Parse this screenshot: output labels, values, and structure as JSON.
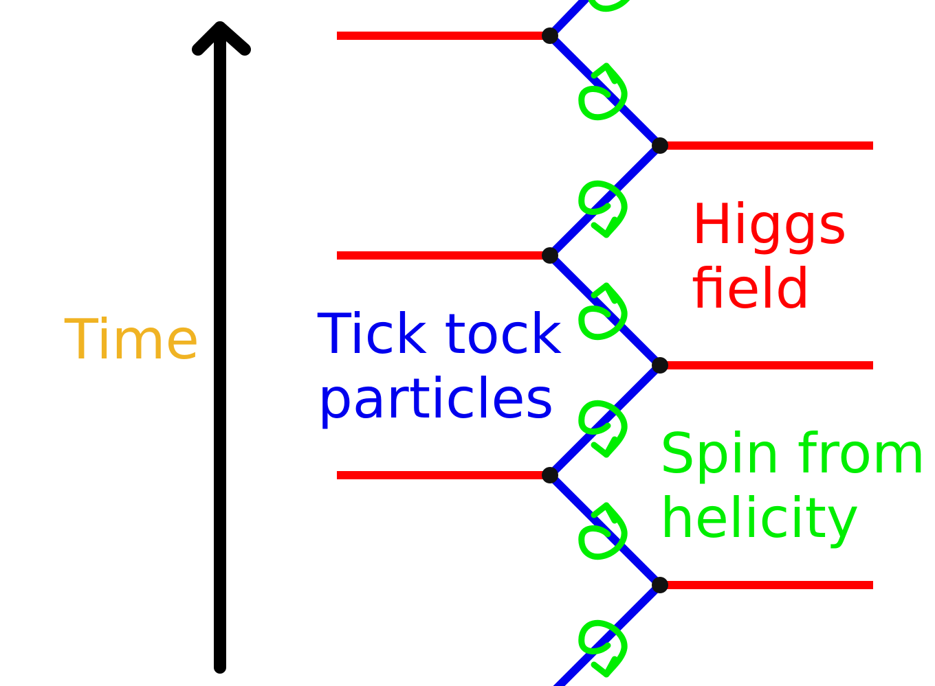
{
  "labels": {
    "time": "Time",
    "particles_line1": "Tick tock",
    "particles_line2": "particles",
    "higgs_line1": "Higgs",
    "higgs_line2": "field",
    "spin_line1": "Spin from",
    "spin_line2": "helicity"
  },
  "colors": {
    "time": "#f0b323",
    "particles": "#0000ee",
    "higgs": "#ff0000",
    "spin": "#00ee00",
    "arrow": "#000000",
    "vertex": "#111111"
  }
}
